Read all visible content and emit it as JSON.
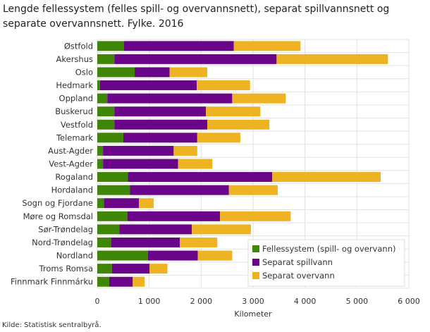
{
  "chart_data": {
    "type": "bar",
    "orientation": "horizontal",
    "stacked": true,
    "title": "Lengde fellessystem (felles spill- og overvannsnett), separat spillvannsnett og separate overvannsnett. Fylke. 2016",
    "xlabel": "Kilometer",
    "xlim": [
      0,
      6000
    ],
    "xticks": [
      "0",
      "1 000",
      "2 000",
      "3 000",
      "4 000",
      "5 000",
      "6 000"
    ],
    "grid": true,
    "legend": "bottom-right",
    "categories": [
      "Østfold",
      "Akershus",
      "Oslo",
      "Hedmark",
      "Oppland",
      "Buskerud",
      "Vestfold",
      "Telemark",
      "Aust-Agder",
      "Vest-Agder",
      "Rogaland",
      "Hordaland",
      "Sogn og Fjordane",
      "Møre og Romsdal",
      "Sør-Trøndelag",
      "Nord-Trøndelag",
      "Nordland",
      "Troms Romsa",
      "Finnmark Finnmárku"
    ],
    "series": [
      {
        "name": "Fellessystem (spill- og overvann)",
        "color": "#3f8506",
        "values": [
          516,
          329,
          720,
          52,
          193,
          329,
          329,
          501,
          110,
          110,
          589,
          631,
          130,
          579,
          428,
          266,
          976,
          282,
          230
        ]
      },
      {
        "name": "Separat spillvann",
        "color": "#6a0589",
        "values": [
          2114,
          3124,
          672,
          1863,
          2405,
          1763,
          1789,
          1424,
          1361,
          1445,
          2781,
          1904,
          673,
          1784,
          1393,
          1325,
          959,
          725,
          453
        ]
      },
      {
        "name": "Separat overvann",
        "color": "#edb322",
        "values": [
          1283,
          2144,
          726,
          1027,
          1033,
          1048,
          1195,
          830,
          454,
          662,
          2087,
          939,
          282,
          1362,
          1137,
          720,
          663,
          344,
          230
        ]
      }
    ]
  },
  "source": "Kilde: Statistisk sentralbyrå."
}
